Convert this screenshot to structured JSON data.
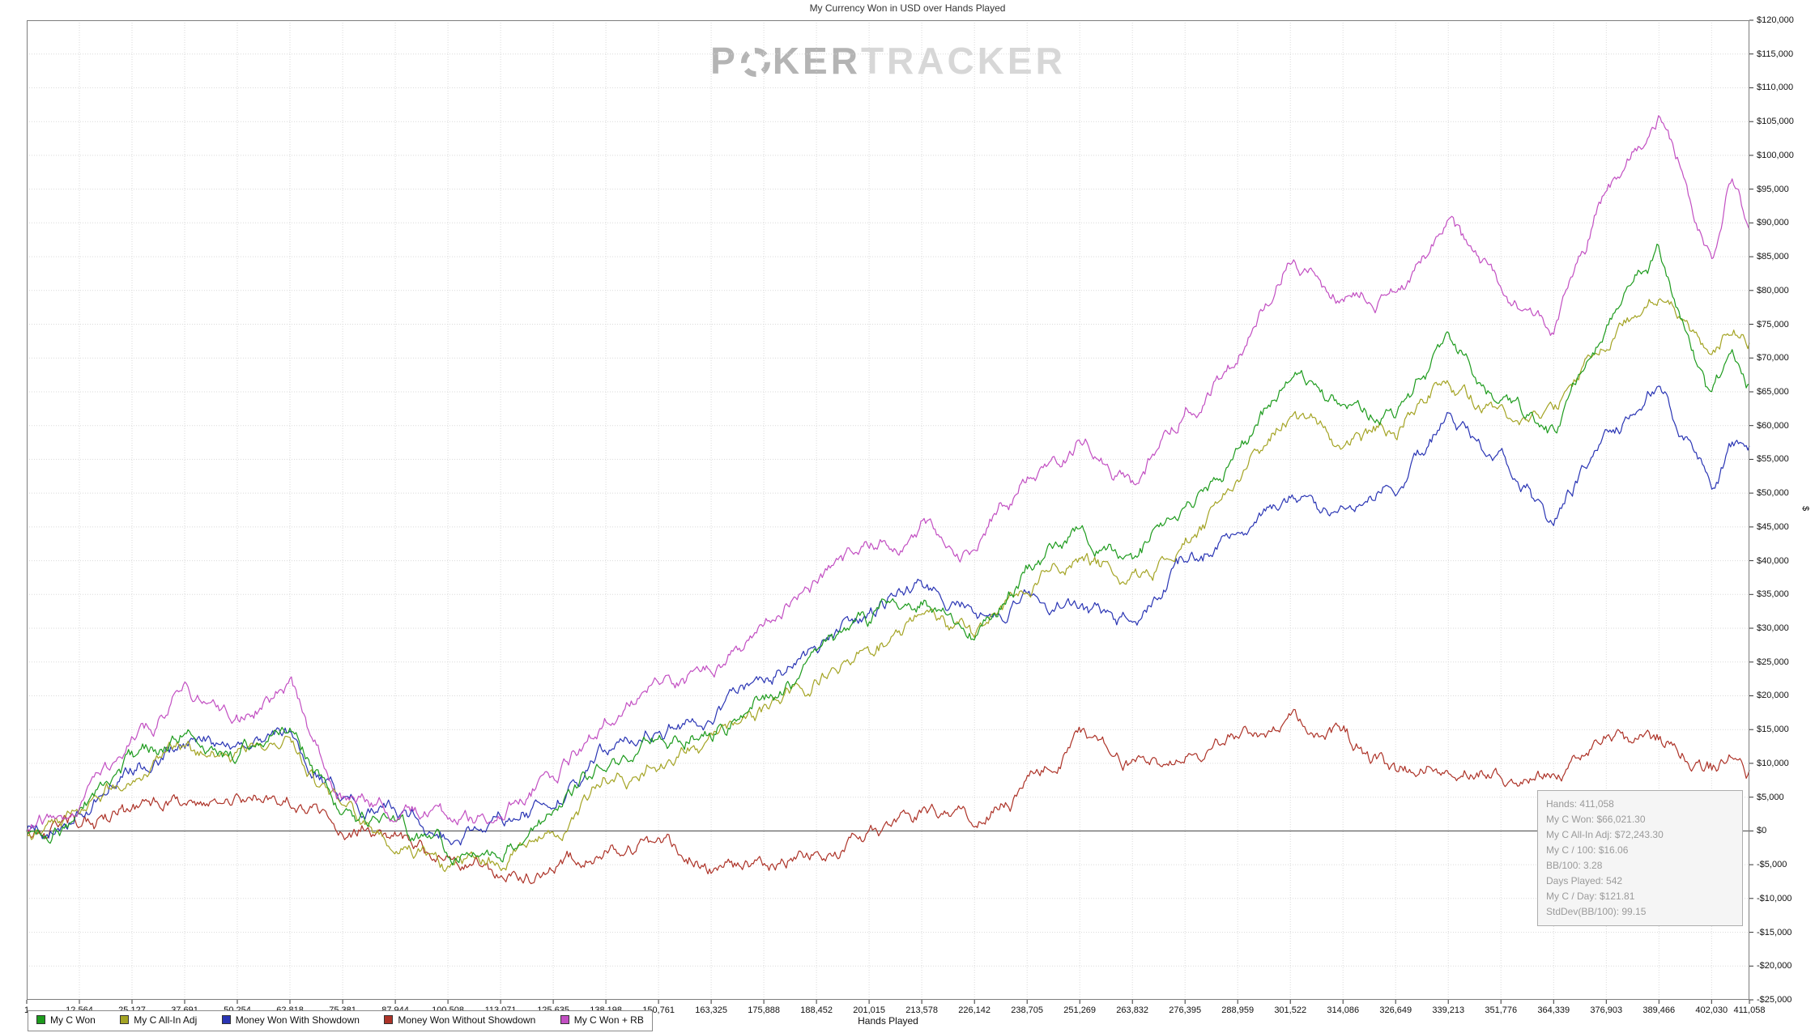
{
  "watermark": {
    "p": "P",
    "ker": "KER",
    "tracker": "TRACKER"
  },
  "stats_box": {
    "lines": [
      "Hands: 411,058",
      "My C Won: $66,021.30",
      "My C All-In Adj: $72,243.30",
      "My C / 100: $16.06",
      "BB/100: 3.28",
      "Days Played: 542",
      "My C / Day: $121.81",
      "StdDev(BB/100): 99.15"
    ]
  },
  "chart_data": {
    "type": "line",
    "title": "My Currency Won in USD over Hands Played",
    "xlabel": "Hands Played",
    "ylabel": "$",
    "xlim": [
      1,
      411058
    ],
    "ylim": [
      -25000,
      120000
    ],
    "ytick_step": 5000,
    "grid": true,
    "grid_color": "#dadada",
    "legend_position": "bottom-left",
    "x_ticks": [
      1,
      12564,
      25127,
      37691,
      50254,
      62818,
      75381,
      87944,
      100508,
      113071,
      125635,
      138198,
      150761,
      163325,
      175888,
      188452,
      201015,
      213578,
      226142,
      238705,
      251269,
      263832,
      276395,
      288959,
      301522,
      314086,
      326649,
      339213,
      351776,
      364339,
      376903,
      389466,
      402030,
      411058
    ],
    "x": [
      1,
      12564,
      25127,
      37691,
      50254,
      62818,
      75381,
      87944,
      100508,
      113071,
      125635,
      138198,
      150761,
      163325,
      175888,
      188452,
      201015,
      213578,
      226142,
      238705,
      251269,
      263832,
      276395,
      288959,
      301522,
      314086,
      326649,
      339213,
      351776,
      364339,
      376903,
      389466,
      402030,
      407000,
      411058
    ],
    "series": [
      {
        "name": "My C Won",
        "color": "#1d9b1d",
        "final_value": "$66,021.30",
        "values": [
          0,
          2000,
          10000,
          15000,
          13000,
          17000,
          2000,
          1000,
          -4000,
          -3000,
          2000,
          10000,
          14000,
          15000,
          20000,
          26000,
          30000,
          35000,
          30000,
          38000,
          44000,
          38000,
          48000,
          55000,
          68000,
          62000,
          60000,
          72000,
          63000,
          58000,
          75000,
          85000,
          62000,
          70000,
          66021.3
        ]
      },
      {
        "name": "My C All-In Adj",
        "color": "#a4a424",
        "final_value": "$72,243.30",
        "values": [
          0,
          1500,
          8000,
          12000,
          11000,
          14000,
          1000,
          -2000,
          -7000,
          -4000,
          0,
          7000,
          11000,
          12000,
          17000,
          23000,
          27000,
          31000,
          27000,
          35000,
          41000,
          37000,
          44000,
          52000,
          63000,
          58000,
          60000,
          67000,
          62000,
          60000,
          73000,
          82000,
          70000,
          74000,
          72243.3
        ]
      },
      {
        "name": "Money Won With Showdown",
        "color": "#2a35b4",
        "values": [
          0,
          3000,
          9000,
          13000,
          11000,
          14000,
          4000,
          3000,
          500,
          2000,
          6000,
          13000,
          16000,
          16000,
          22000,
          27000,
          31000,
          34000,
          30000,
          33000,
          33000,
          31000,
          40000,
          44000,
          50000,
          47000,
          50000,
          63000,
          57000,
          47000,
          58000,
          67000,
          52000,
          58000,
          57000
        ]
      },
      {
        "name": "Money Won Without Showdown",
        "color": "#ad3328",
        "values": [
          0,
          1000,
          2000,
          4000,
          4500,
          3500,
          0,
          -2000,
          -5000,
          -5500,
          -5000,
          -3000,
          -2000,
          -5000,
          -5000,
          -4000,
          -1000,
          2000,
          1000,
          6000,
          12000,
          8000,
          9000,
          11000,
          16000,
          13000,
          8000,
          9000,
          8000,
          7000,
          15000,
          14000,
          10000,
          12000,
          9000
        ]
      },
      {
        "name": "My C Won + RB",
        "color": "#c24fc2",
        "values": [
          0,
          4000,
          12000,
          20000,
          16000,
          21000,
          5000,
          4000,
          1000,
          3000,
          8000,
          17000,
          22000,
          24000,
          30000,
          37000,
          42000,
          47000,
          43000,
          52000,
          57000,
          51000,
          62000,
          70000,
          85000,
          79000,
          78000,
          90000,
          80000,
          76000,
          95000,
          104000,
          84000,
          96000,
          89000
        ]
      }
    ]
  }
}
